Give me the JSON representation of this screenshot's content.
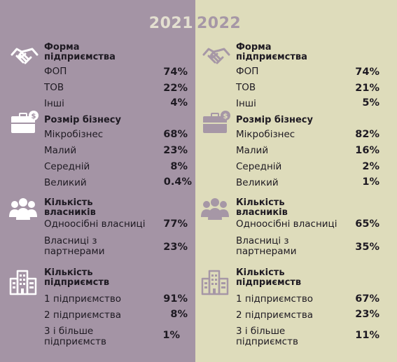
{
  "years": {
    "left": "2021",
    "right": "2022"
  },
  "left": {
    "form": {
      "title": "Форма підприємства",
      "rows": [
        {
          "label": "ФОП",
          "value": "74%"
        },
        {
          "label": "ТОВ",
          "value": "22%"
        },
        {
          "label": "Інші",
          "value": "4%"
        }
      ]
    },
    "size": {
      "title": "Розмір бізнесу",
      "rows": [
        {
          "label": "Мікробізнес",
          "value": "68%"
        },
        {
          "label": "Малий",
          "value": "23%"
        },
        {
          "label": "Середній",
          "value": "8%"
        },
        {
          "label": "Великий",
          "value": "0.4%"
        }
      ]
    },
    "owners": {
      "title": "Кількість власників",
      "rows": [
        {
          "label": "Одноосібні власниці",
          "value": "77%"
        },
        {
          "label": "Власниці з партнерами",
          "value": "23%"
        }
      ]
    },
    "enterprises": {
      "title": "Кількість підприємств",
      "rows": [
        {
          "label": "1 підприємство",
          "value": "91%"
        },
        {
          "label": "2 підприємства",
          "value": "8%"
        },
        {
          "label": "3 і більше підприємств",
          "value": "1%"
        }
      ]
    }
  },
  "right": {
    "form": {
      "title": "Форма підприємства",
      "rows": [
        {
          "label": "ФОП",
          "value": "74%"
        },
        {
          "label": "ТОВ",
          "value": "21%"
        },
        {
          "label": "Інші",
          "value": "5%"
        }
      ]
    },
    "size": {
      "title": "Розмір бізнесу",
      "rows": [
        {
          "label": "Мікробізнес",
          "value": "82%"
        },
        {
          "label": "Малий",
          "value": "16%"
        },
        {
          "label": "Середній",
          "value": "2%"
        },
        {
          "label": "Великий",
          "value": "1%"
        }
      ]
    },
    "owners": {
      "title": "Кількість власників",
      "rows": [
        {
          "label": "Одноосібні власниці",
          "value": "65%"
        },
        {
          "label": "Власниці з партнерами",
          "value": "35%"
        }
      ]
    },
    "enterprises": {
      "title": "Кількість підприємств",
      "rows": [
        {
          "label": "1 підприємство",
          "value": "67%"
        },
        {
          "label": "2 підприємства",
          "value": "23%"
        },
        {
          "label": "3 і більше підприємств",
          "value": "11%"
        }
      ]
    }
  },
  "icons": {
    "form": "handshake-icon",
    "size": "briefcase-icon",
    "owners": "people-icon",
    "enterprises": "buildings-icon"
  },
  "colors": {
    "left_bg": "#a494a5",
    "right_bg": "#dedcbb",
    "left_icon": "#ffffff",
    "right_icon": "#a697a6"
  }
}
